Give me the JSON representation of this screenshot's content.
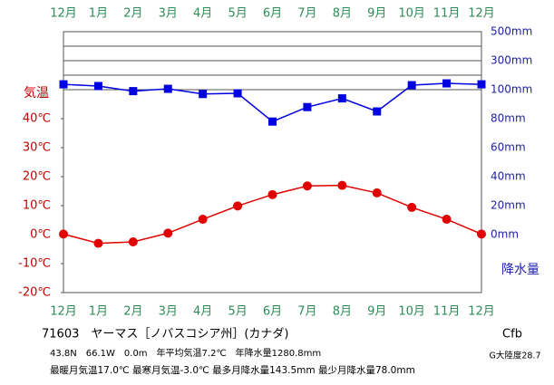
{
  "chart_data": {
    "type": "climograph",
    "categories": [
      "12月",
      "1月",
      "2月",
      "3月",
      "4月",
      "5月",
      "6月",
      "7月",
      "8月",
      "9月",
      "10月",
      "11月",
      "12月"
    ],
    "series": [
      {
        "name": "気温",
        "color": "#e00000",
        "values": [
          0.2,
          -3.0,
          -2.5,
          0.5,
          5.3,
          9.9,
          13.8,
          16.8,
          17.0,
          14.4,
          9.4,
          5.3,
          0.2
        ]
      },
      {
        "name": "降水量",
        "color": "#0000e0",
        "axis": "y2",
        "values": [
          137,
          125,
          99,
          106,
          97,
          97.5,
          78,
          88,
          94,
          85,
          131,
          143.5,
          137
        ]
      }
    ],
    "ylim": [
      -20,
      70
    ],
    "yticks": [
      {
        "value": -20,
        "label": "-20℃"
      },
      {
        "value": -10,
        "label": "-10℃"
      },
      {
        "value": 0,
        "label": "0℃"
      },
      {
        "value": 10,
        "label": "10℃"
      },
      {
        "value": 20,
        "label": "20℃"
      },
      {
        "value": 30,
        "label": "30℃"
      },
      {
        "value": 40,
        "label": "40℃"
      }
    ],
    "y2ticks": [
      {
        "value": 0,
        "label": "0mm"
      },
      {
        "value": 20,
        "label": "20mm"
      },
      {
        "value": 40,
        "label": "40mm"
      },
      {
        "value": 60,
        "label": "60mm"
      },
      {
        "value": 80,
        "label": "80mm"
      },
      {
        "value": 100,
        "label": "100mm"
      },
      {
        "value": 300,
        "label": "300mm"
      },
      {
        "value": 500,
        "label": "500mm"
      }
    ],
    "y2minor": [
      200,
      400
    ],
    "station": "71603　ヤーマス［ノバスコシア州］(カナダ)",
    "info1": "43.8N　66.1W　0.0m　年平均気温7.2℃　年降水量1280.8mm",
    "info2": "最暖月気温17.0℃ 最寒月気温-3.0℃ 最多月降水量143.5mm 最少月降水量78.0mm",
    "climate": "Cfb",
    "continentality": "G大陸度28.7"
  }
}
